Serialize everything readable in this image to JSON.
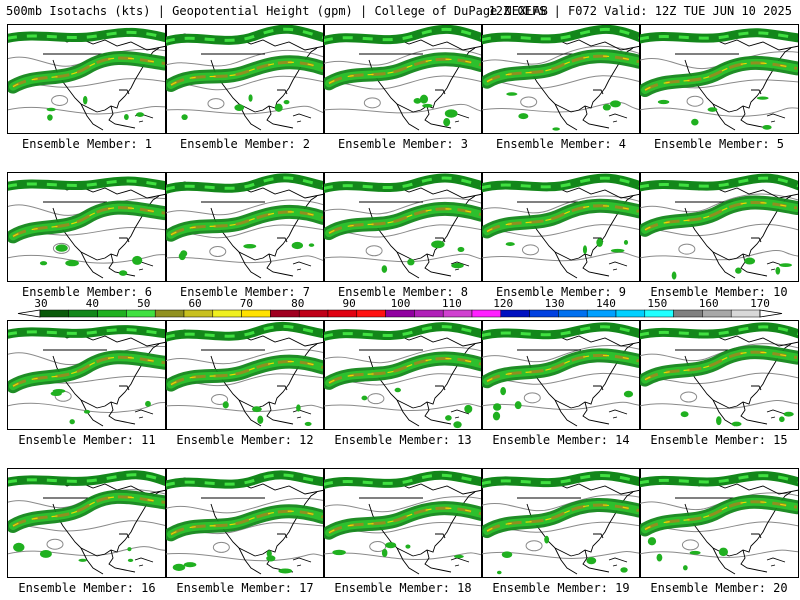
{
  "header": {
    "left": "500mb Isotachs (kts) | Geopotential Height (gpm) | College of DuPage NEXLAB",
    "right": "12Z GEFS | F072 Valid: 12Z TUE JUN 10 2025"
  },
  "colorbar": {
    "labels": [
      "30",
      "40",
      "50",
      "60",
      "70",
      "80",
      "90",
      "100",
      "110",
      "120",
      "130",
      "140",
      "150",
      "160",
      "170"
    ],
    "colors": [
      "#0a5a0a",
      "#13871a",
      "#20b020",
      "#40e040",
      "#909020",
      "#c8c020",
      "#f0f020",
      "#ffe100",
      "#a00020",
      "#c00018",
      "#e00010",
      "#ff1010",
      "#9000a0",
      "#b020b8",
      "#d040d0",
      "#ff20ff",
      "#0010c0",
      "#0040e0",
      "#0070f0",
      "#00a0ff",
      "#00d0ff",
      "#20ffff",
      "#808080",
      "#a8a8a8",
      "#d8d8d8"
    ]
  },
  "panels": [
    {
      "label": "Ensemble Member: 1"
    },
    {
      "label": "Ensemble Member: 2"
    },
    {
      "label": "Ensemble Member: 3"
    },
    {
      "label": "Ensemble Member: 4"
    },
    {
      "label": "Ensemble Member: 5"
    },
    {
      "label": "Ensemble Member: 6"
    },
    {
      "label": "Ensemble Member: 7"
    },
    {
      "label": "Ensemble Member: 8"
    },
    {
      "label": "Ensemble Member: 9"
    },
    {
      "label": "Ensemble Member: 10"
    },
    {
      "label": "Ensemble Member: 11"
    },
    {
      "label": "Ensemble Member: 12"
    },
    {
      "label": "Ensemble Member: 13"
    },
    {
      "label": "Ensemble Member: 14"
    },
    {
      "label": "Ensemble Member: 15"
    },
    {
      "label": "Ensemble Member: 16"
    },
    {
      "label": "Ensemble Member: 17"
    },
    {
      "label": "Ensemble Member: 18"
    },
    {
      "label": "Ensemble Member: 19"
    },
    {
      "label": "Ensemble Member: 20"
    }
  ]
}
